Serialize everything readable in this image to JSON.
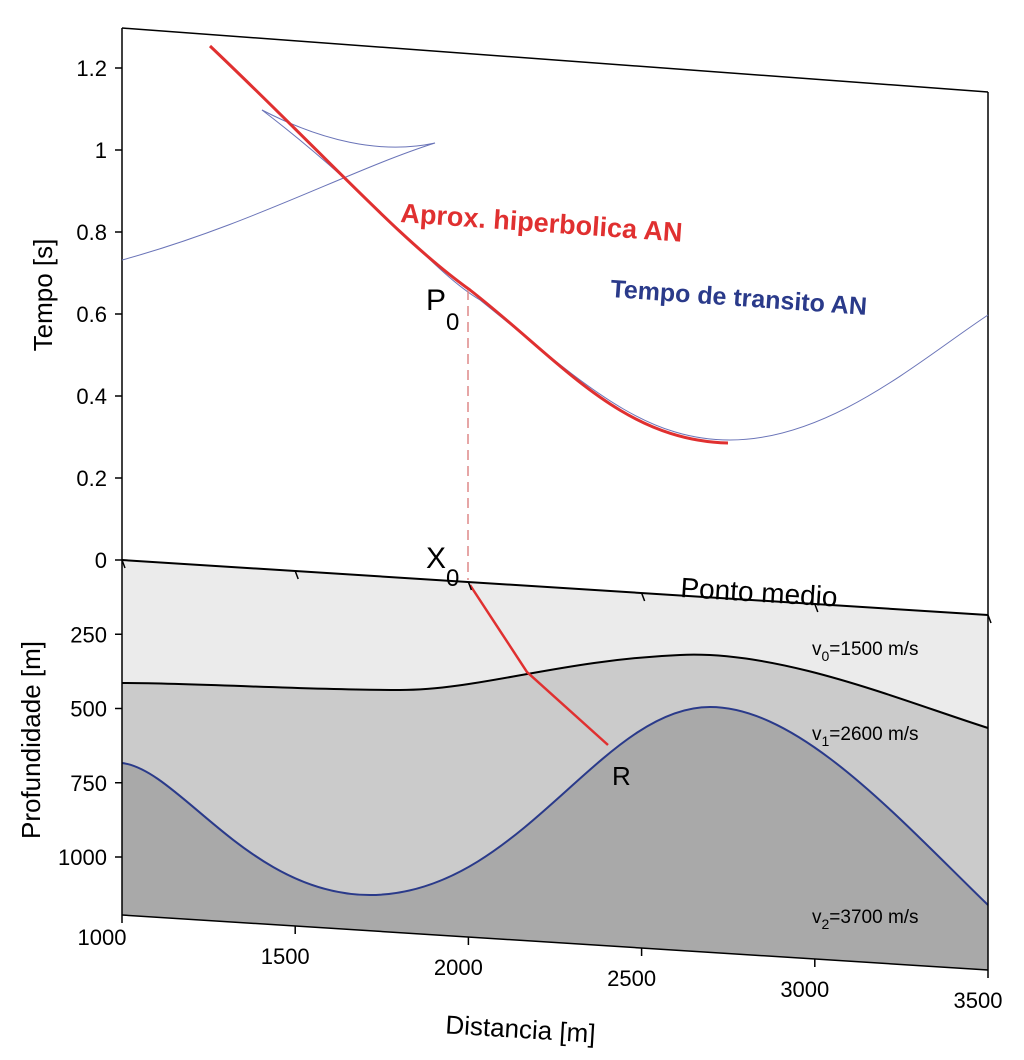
{
  "axes": {
    "y_upper_label": "Tempo  [s]",
    "y_lower_label": "Profundidade [m]",
    "x_label": "Distancia [m]",
    "y_upper_ticks": [
      1.2,
      1,
      0.8,
      0.6,
      0.4,
      0.2,
      0
    ],
    "y_lower_ticks": [
      250,
      500,
      750,
      1000
    ],
    "x_ticks": [
      1000,
      1500,
      2000,
      2500,
      3000,
      3500
    ]
  },
  "annotations": {
    "hyperbolic": "Aprox. hiperbolica AN",
    "transit": "Tempo de transito AN",
    "p0": {
      "letter": "P",
      "sub": "0"
    },
    "x0": {
      "letter": "X",
      "sub": "0"
    },
    "midpoint": "Ponto medio",
    "reflector": "R",
    "layers": [
      {
        "letter": "v",
        "sub": "0",
        "rest": "=1500 m/s"
      },
      {
        "letter": "v",
        "sub": "1",
        "rest": "=2600 m/s"
      },
      {
        "letter": "v",
        "sub": "2",
        "rest": "=3700 m/s"
      }
    ]
  }
}
